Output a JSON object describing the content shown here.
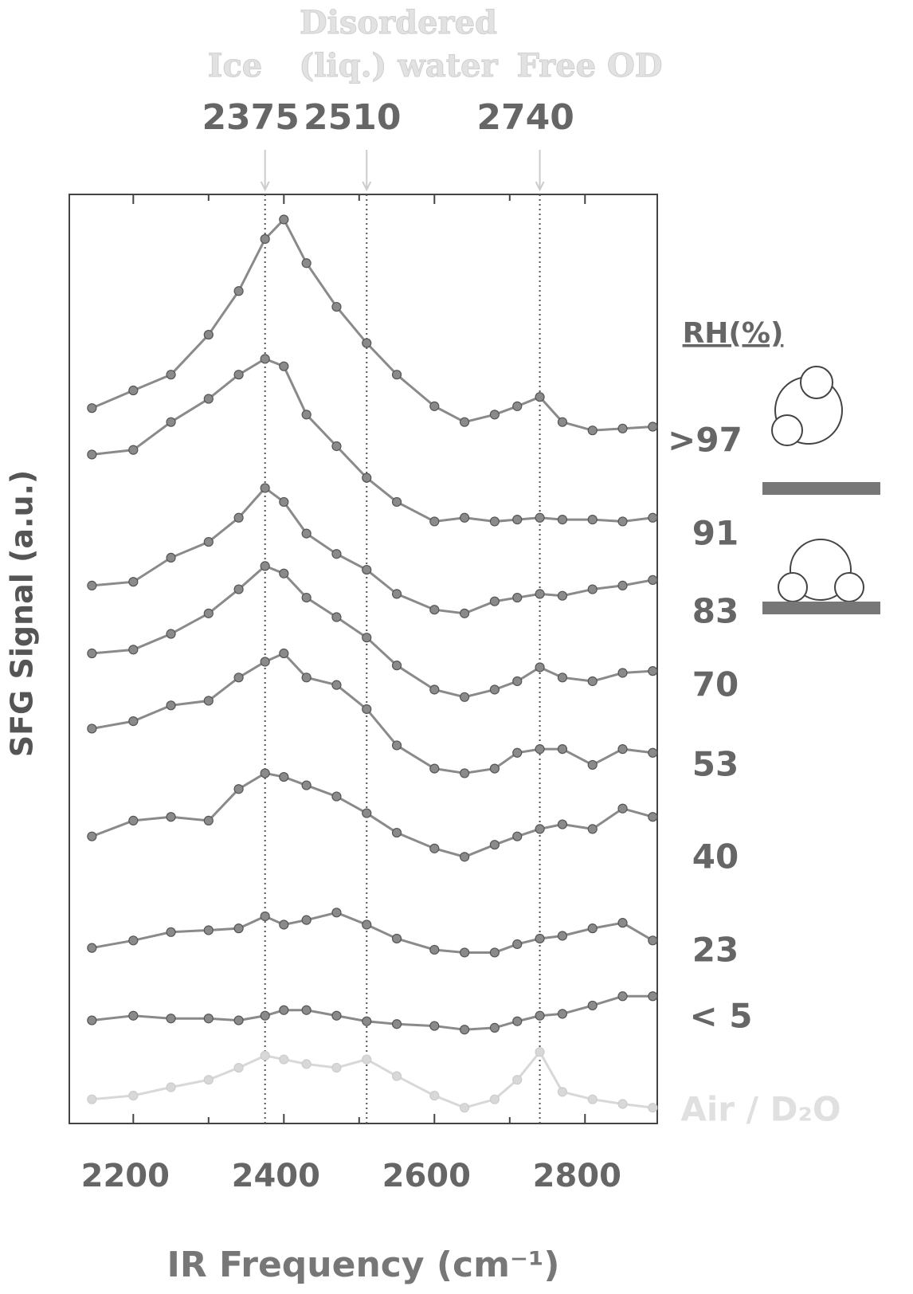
{
  "chart_data": {
    "type": "scatter",
    "x_label": "IR Frequency  (cm⁻¹)",
    "y_label": "SFG Signal (a.u.)",
    "legend_title": "RH(%)",
    "xlim": [
      2115,
      2896
    ],
    "ylim": [
      0,
      100
    ],
    "xticks": [
      2200,
      2400,
      2600,
      2800
    ],
    "xminorticks": [
      2300,
      2500,
      2700
    ],
    "peak_lines": [
      2375,
      2510,
      2740
    ],
    "band_labels": [
      [
        "Ice"
      ],
      [
        "Disordered",
        "(liq.) water"
      ],
      [
        "Free OD"
      ]
    ],
    "x": [
      2145,
      2200,
      2250,
      2300,
      2340,
      2375,
      2400,
      2430,
      2470,
      2510,
      2550,
      2600,
      2640,
      2680,
      2710,
      2740,
      2770,
      2810,
      2850,
      2890
    ],
    "series": [
      {
        "name": ">97",
        "color": "#8a8a8a",
        "values": [
          77.0,
          78.9,
          80.6,
          84.9,
          89.6,
          95.2,
          97.3,
          92.6,
          87.9,
          84.0,
          80.6,
          77.2,
          75.5,
          76.3,
          77.2,
          78.2,
          75.5,
          74.6,
          74.8,
          75.0
        ]
      },
      {
        "name": "91",
        "color": "#8a8a8a",
        "values": [
          72.0,
          72.5,
          75.5,
          78.0,
          80.6,
          82.3,
          81.5,
          76.3,
          72.9,
          69.5,
          66.9,
          64.8,
          65.2,
          64.8,
          65.0,
          65.2,
          65.0,
          65.0,
          64.8,
          65.2
        ]
      },
      {
        "name": "83",
        "color": "#8a8a8a",
        "values": [
          57.9,
          58.3,
          60.9,
          62.6,
          65.2,
          68.4,
          66.9,
          63.5,
          61.3,
          59.6,
          57.0,
          55.3,
          54.9,
          56.2,
          56.6,
          57.0,
          56.8,
          57.5,
          57.9,
          58.5
        ]
      },
      {
        "name": "70",
        "color": "#8a8a8a",
        "values": [
          50.6,
          51.0,
          52.7,
          54.9,
          57.5,
          60.0,
          59.2,
          56.6,
          54.5,
          52.3,
          49.3,
          46.7,
          45.9,
          46.7,
          47.6,
          49.1,
          48.0,
          47.6,
          48.5,
          48.7
        ]
      },
      {
        "name": "53",
        "color": "#8a8a8a",
        "values": [
          42.5,
          43.3,
          45.0,
          45.5,
          48.0,
          49.7,
          50.6,
          48.0,
          47.2,
          44.6,
          40.7,
          38.2,
          37.7,
          38.2,
          39.9,
          40.3,
          40.3,
          38.6,
          40.3,
          39.9
        ]
      },
      {
        "name": "40",
        "color": "#8a8a8a",
        "values": [
          30.9,
          32.6,
          33.0,
          32.6,
          36.0,
          37.7,
          37.3,
          36.4,
          35.2,
          33.4,
          31.3,
          29.6,
          28.7,
          30.0,
          30.9,
          31.7,
          32.2,
          31.7,
          33.9,
          33.0
        ]
      },
      {
        "name": "23",
        "color": "#8a8a8a",
        "values": [
          18.9,
          19.7,
          20.6,
          20.8,
          21.0,
          22.3,
          21.4,
          21.9,
          22.7,
          21.4,
          19.9,
          18.7,
          18.4,
          18.4,
          19.3,
          19.9,
          20.2,
          21.0,
          21.6,
          19.7
        ]
      },
      {
        "name": "< 5",
        "color": "#8a8a8a",
        "values": [
          11.1,
          11.6,
          11.3,
          11.3,
          11.1,
          11.6,
          12.2,
          12.2,
          11.6,
          11.0,
          10.7,
          10.5,
          10.1,
          10.3,
          11.0,
          11.6,
          11.8,
          12.7,
          13.7,
          13.7
        ]
      },
      {
        "name": "Air / D₂O",
        "color": "#d8d8d8",
        "values": [
          2.6,
          3.0,
          3.9,
          4.7,
          6.0,
          7.3,
          6.9,
          6.4,
          6.0,
          6.9,
          5.1,
          3.0,
          1.7,
          2.6,
          4.7,
          7.7,
          3.4,
          2.6,
          2.1,
          1.7
        ]
      }
    ]
  }
}
